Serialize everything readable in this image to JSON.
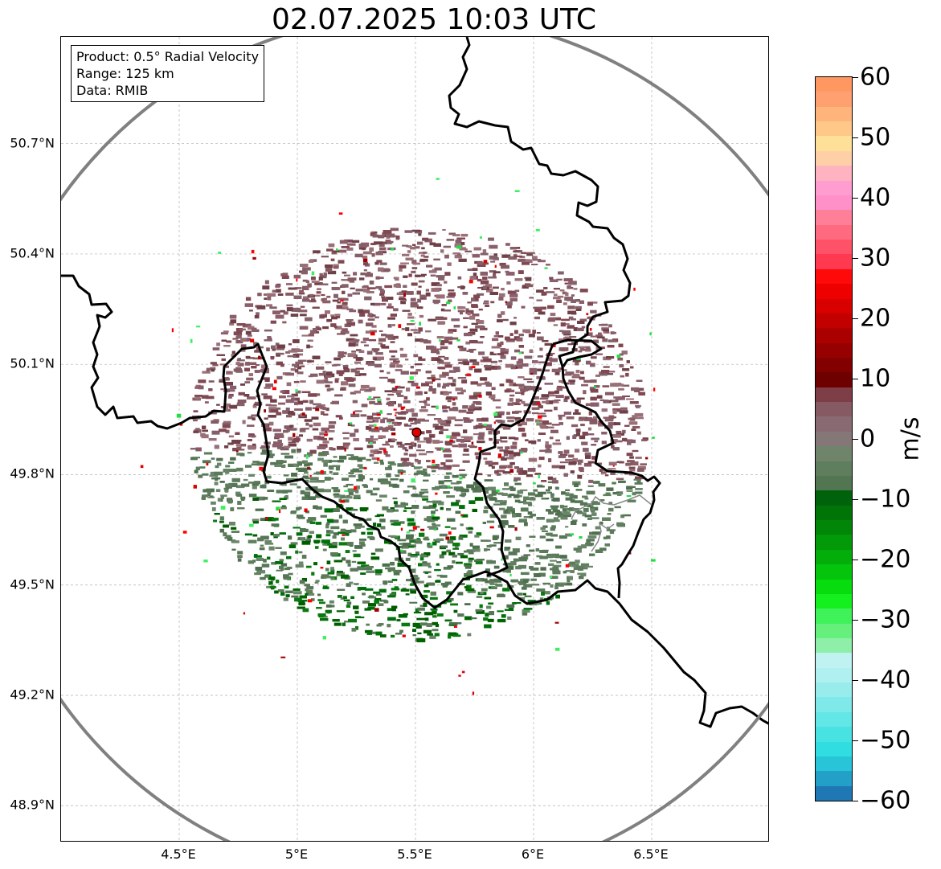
{
  "title": "02.07.2025 10:03 UTC",
  "info_box": {
    "product": "Product: 0.5° Radial Velocity",
    "range": "Range: 125 km",
    "data": "Data: RMIB"
  },
  "axes": {
    "lat_labels": [
      "50.7°N",
      "50.4°N",
      "50.1°N",
      "49.8°N",
      "49.5°N",
      "49.2°N",
      "48.9°N"
    ],
    "lat_values": [
      50.7,
      50.4,
      50.1,
      49.8,
      49.5,
      49.2,
      48.9
    ],
    "lon_labels": [
      "4.5°E",
      "5°E",
      "5.5°E",
      "6°E",
      "6.5°E"
    ],
    "lon_values": [
      4.5,
      5.0,
      5.5,
      6.0,
      6.5
    ],
    "lon_range": [
      4.0,
      7.0
    ],
    "lat_range": [
      48.8,
      50.99
    ]
  },
  "radar_site": {
    "lon": 5.505,
    "lat": 49.915,
    "color": "#e00000"
  },
  "colorbar": {
    "unit": "m/s",
    "range": [
      -60,
      60
    ],
    "ticks": [
      "60",
      "50",
      "40",
      "30",
      "20",
      "10",
      "0",
      "−10",
      "−20",
      "−30",
      "−40",
      "−50",
      "−60"
    ],
    "tick_values": [
      60,
      50,
      40,
      30,
      20,
      10,
      0,
      -10,
      -20,
      -30,
      -40,
      -50,
      -60
    ],
    "colors": [
      "#1f78b4",
      "#23a0c8",
      "#28c4d8",
      "#30dde0",
      "#48e2e2",
      "#63e6e6",
      "#7fe9e9",
      "#98ecec",
      "#b0f0f0",
      "#c0f2f2",
      "#8ef0a8",
      "#66ef7c",
      "#3ff25a",
      "#14f01e",
      "#06dc0e",
      "#04c40c",
      "#03ae0a",
      "#029a08",
      "#018607",
      "#007406",
      "#00620a",
      "#527552",
      "#5e7e5e",
      "#6f846b",
      "#857777",
      "#8a6a72",
      "#865a62",
      "#7e3e48",
      "#6e0000",
      "#820000",
      "#960000",
      "#aa0000",
      "#c20000",
      "#d80000",
      "#ee0000",
      "#ff0a0a",
      "#ff3a50",
      "#ff5268",
      "#ff6a80",
      "#ff7e98",
      "#ff90c8",
      "#ff9cd0",
      "#ffb2c0",
      "#ffd0a8",
      "#ffe098",
      "#ffc888",
      "#ffb47c",
      "#ffa070",
      "#ff9860"
    ]
  }
}
